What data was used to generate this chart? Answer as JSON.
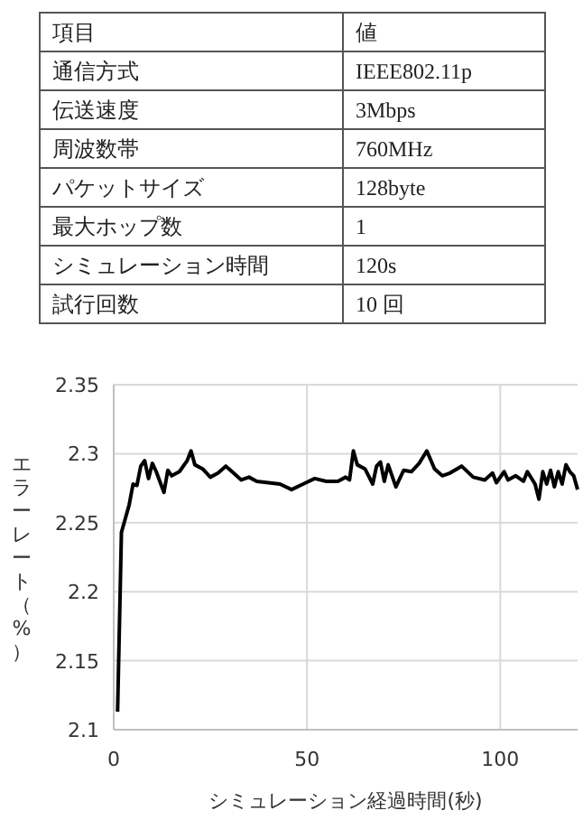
{
  "chart_data": [
    {
      "type": "other",
      "annotations": [
        "項目",
        "値",
        "通信方式",
        "IEEE802.11p",
        "伝送速度",
        "3Mbps",
        "周波数帯",
        "760MHz",
        "パケットサイズ",
        "128byte",
        "最大ホップ数",
        "1",
        "シミュレーション時間",
        "120s",
        "試行回数",
        "10 回"
      ]
    },
    {
      "type": "line",
      "xlabel": "シミュレーション経過時間(秒)",
      "ylabel": "エラーレート（%）",
      "color": "#000000",
      "grid": true,
      "xlim": [
        0,
        120
      ],
      "ylim": [
        2.1,
        2.35
      ],
      "xticks": [
        0,
        50,
        100
      ],
      "yticks": [
        2.1,
        2.15,
        2.2,
        2.25,
        2.3,
        2.35
      ],
      "x": [
        1,
        2,
        4,
        5,
        6,
        7,
        8,
        9,
        10,
        11,
        13,
        14,
        15,
        17,
        19,
        20,
        21,
        23,
        25,
        27,
        29,
        31,
        33,
        35,
        37,
        40,
        43,
        46,
        49,
        52,
        55,
        58,
        60,
        61,
        62,
        63,
        65,
        67,
        68,
        69,
        70,
        71,
        73,
        75,
        77,
        79,
        81,
        83,
        85,
        87,
        90,
        93,
        96,
        98,
        99,
        101,
        102,
        104,
        106,
        107,
        109,
        110,
        111,
        112,
        113,
        114,
        115,
        116,
        117,
        118,
        119,
        120
      ],
      "values": [
        2.113,
        2.243,
        2.263,
        2.278,
        2.277,
        2.291,
        2.295,
        2.282,
        2.293,
        2.287,
        2.272,
        2.288,
        2.284,
        2.287,
        2.295,
        2.302,
        2.292,
        2.289,
        2.283,
        2.286,
        2.291,
        2.286,
        2.281,
        2.283,
        2.28,
        2.279,
        2.278,
        2.274,
        2.278,
        2.282,
        2.28,
        2.28,
        2.283,
        2.281,
        2.302,
        2.292,
        2.289,
        2.278,
        2.291,
        2.294,
        2.28,
        2.292,
        2.276,
        2.288,
        2.287,
        2.293,
        2.302,
        2.289,
        2.284,
        2.286,
        2.291,
        2.283,
        2.281,
        2.286,
        2.279,
        2.287,
        2.281,
        2.284,
        2.28,
        2.287,
        2.278,
        2.267,
        2.287,
        2.278,
        2.288,
        2.276,
        2.287,
        2.278,
        2.292,
        2.287,
        2.284,
        2.274
      ]
    }
  ]
}
